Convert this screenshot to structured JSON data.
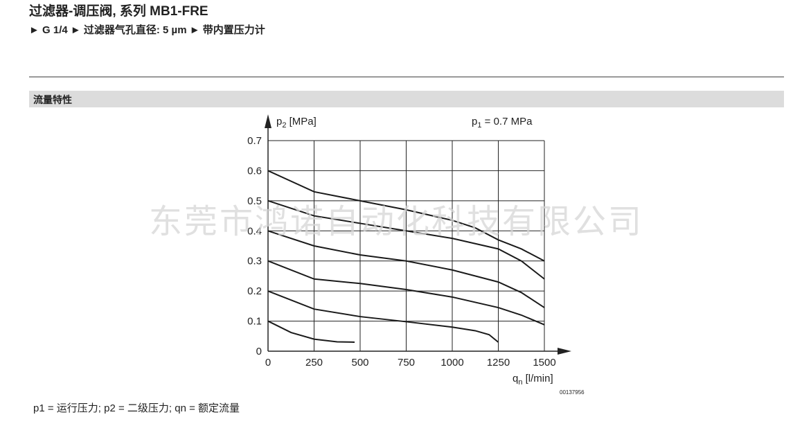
{
  "header": {
    "title": "过滤器-调压阀, 系列 MB1-FRE",
    "subtitle": "► G 1/4 ► 过滤器气孔直径: 5 µm ► 带内置压力计"
  },
  "section": "流量特性",
  "watermark": "东莞市鸿诺自动化科技有限公司",
  "footnote": "p1 = 运行压力; p2 = 二级压力; qn = 额定流量",
  "figure_id": "00137956",
  "chart_data": {
    "type": "line",
    "y_label": [
      "p",
      "2",
      " [MPa]"
    ],
    "x_label": [
      "q",
      "n",
      " [l/min]"
    ],
    "annotation": [
      "p",
      "1",
      " = 0.7 MPa"
    ],
    "color": "#1a1a1a",
    "grid": true,
    "xlim": [
      0,
      1500
    ],
    "ylim": [
      0,
      0.7
    ],
    "xticks": [
      0,
      250,
      500,
      750,
      1000,
      1250,
      1500
    ],
    "yticks": [
      0,
      0.1,
      0.2,
      0.3,
      0.4,
      0.5,
      0.6,
      0.7
    ],
    "series": [
      {
        "x": [
          0,
          250,
          500,
          750,
          1000,
          1125,
          1250,
          1375,
          1500
        ],
        "values": [
          0.6,
          0.53,
          0.5,
          0.47,
          0.435,
          0.41,
          0.37,
          0.34,
          0.3
        ]
      },
      {
        "x": [
          0,
          250,
          500,
          750,
          1000,
          1250,
          1375,
          1500
        ],
        "values": [
          0.5,
          0.45,
          0.425,
          0.4,
          0.375,
          0.34,
          0.3,
          0.24
        ]
      },
      {
        "x": [
          0,
          250,
          500,
          750,
          1000,
          1250,
          1375,
          1500
        ],
        "values": [
          0.4,
          0.35,
          0.32,
          0.3,
          0.27,
          0.23,
          0.195,
          0.145
        ]
      },
      {
        "x": [
          0,
          250,
          500,
          750,
          1000,
          1250,
          1375,
          1500
        ],
        "values": [
          0.3,
          0.24,
          0.225,
          0.205,
          0.18,
          0.145,
          0.12,
          0.088
        ]
      },
      {
        "x": [
          0,
          250,
          500,
          750,
          1000,
          1125,
          1200,
          1250
        ],
        "values": [
          0.2,
          0.14,
          0.115,
          0.098,
          0.08,
          0.068,
          0.055,
          0.03
        ]
      },
      {
        "x": [
          0,
          125,
          250,
          375,
          470
        ],
        "values": [
          0.1,
          0.062,
          0.04,
          0.031,
          0.03
        ]
      }
    ]
  }
}
